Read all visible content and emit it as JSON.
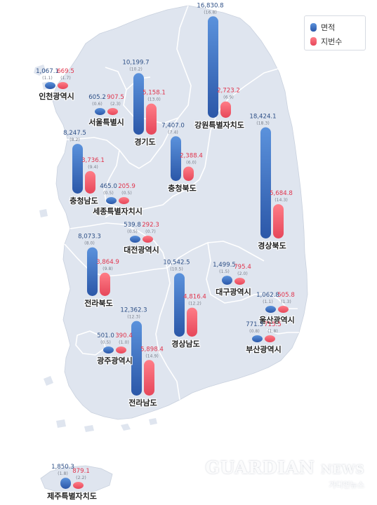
{
  "legend": {
    "area_label": "면적",
    "lots_label": "지번수",
    "area_color": "#3e72c4",
    "lots_color": "#ea5a6b"
  },
  "regions": [
    {
      "name": "인천광역시",
      "area": "1,067.1",
      "area_pct": "(1.1)",
      "lots": "669.5",
      "lots_pct": "(1.7)",
      "area_value": 1067.1,
      "lots_value": 669.5
    },
    {
      "name": "서울특별시",
      "area": "605.2",
      "area_pct": "(0.6)",
      "lots": "907.5",
      "lots_pct": "(2.3)",
      "area_value": 605.2,
      "lots_value": 907.5
    },
    {
      "name": "경기도",
      "area": "10,199.7",
      "area_pct": "(10.2)",
      "lots": "5,158.1",
      "lots_pct": "(13.0)",
      "area_value": 10199.7,
      "lots_value": 5158.1
    },
    {
      "name": "강원특별자치도",
      "area": "16,830.8",
      "area_pct": "(16.8)",
      "lots": "2,723.2",
      "lots_pct": "(6.9)",
      "area_value": 16830.8,
      "lots_value": 2723.2
    },
    {
      "name": "충청북도",
      "area": "7,407.0",
      "area_pct": "(7.4)",
      "lots": "2,388.4",
      "lots_pct": "(6.0)",
      "area_value": 7407.0,
      "lots_value": 2388.4
    },
    {
      "name": "경상북도",
      "area": "18,424.1",
      "area_pct": "(18.3)",
      "lots": "5,684.8",
      "lots_pct": "(14.3)",
      "area_value": 18424.1,
      "lots_value": 5684.8
    },
    {
      "name": "충청남도",
      "area": "8,247.5",
      "area_pct": "(8.2)",
      "lots": "3,736.1",
      "lots_pct": "(9.4)",
      "area_value": 8247.5,
      "lots_value": 3736.1
    },
    {
      "name": "세종특별자치시",
      "area": "465.0",
      "area_pct": "(0.5)",
      "lots": "205.9",
      "lots_pct": "(0.5)",
      "area_value": 465.0,
      "lots_value": 205.9
    },
    {
      "name": "대전광역시",
      "area": "539.8",
      "area_pct": "(0.5)",
      "lots": "292.3",
      "lots_pct": "(0.7)",
      "area_value": 539.8,
      "lots_value": 292.3
    },
    {
      "name": "전라북도",
      "area": "8,073.3",
      "area_pct": "(8.0)",
      "lots": "3,864.9",
      "lots_pct": "(9.8)",
      "area_value": 8073.3,
      "lots_value": 3864.9
    },
    {
      "name": "대구광역시",
      "area": "1,499.5",
      "area_pct": "(1.5)",
      "lots": "795.4",
      "lots_pct": "(2.0)",
      "area_value": 1499.5,
      "lots_value": 795.4
    },
    {
      "name": "경상남도",
      "area": "10,542.5",
      "area_pct": "(10.5)",
      "lots": "4,816.4",
      "lots_pct": "(12.2)",
      "area_value": 10542.5,
      "lots_value": 4816.4
    },
    {
      "name": "울산광역시",
      "area": "1,062.8",
      "area_pct": "(1.1)",
      "lots": "505.8",
      "lots_pct": "(1.3)",
      "area_value": 1062.8,
      "lots_value": 505.8
    },
    {
      "name": "광주광역시",
      "area": "501.0",
      "area_pct": "(0.5)",
      "lots": "390.4",
      "lots_pct": "(1.0)",
      "area_value": 501.0,
      "lots_value": 390.4
    },
    {
      "name": "전라남도",
      "area": "12,362.3",
      "area_pct": "(12.3)",
      "lots": "5,898.4",
      "lots_pct": "(14.9)",
      "area_value": 12362.3,
      "lots_value": 5898.4
    },
    {
      "name": "부산광역시",
      "area": "771.3",
      "area_pct": "(0.8)",
      "lots": "715.5",
      "lots_pct": "(1.8)",
      "area_value": 771.3,
      "lots_value": 715.5
    },
    {
      "name": "제주특별자치도",
      "area": "1,850.3",
      "area_pct": "(1.8)",
      "lots": "879.1",
      "lots_pct": "(2.2)",
      "area_value": 1850.3,
      "lots_value": 879.1
    }
  ],
  "watermark": {
    "brand": "GUARDIAN",
    "brand_suffix": "NEWS",
    "brand_korean": "가디언뉴스"
  }
}
